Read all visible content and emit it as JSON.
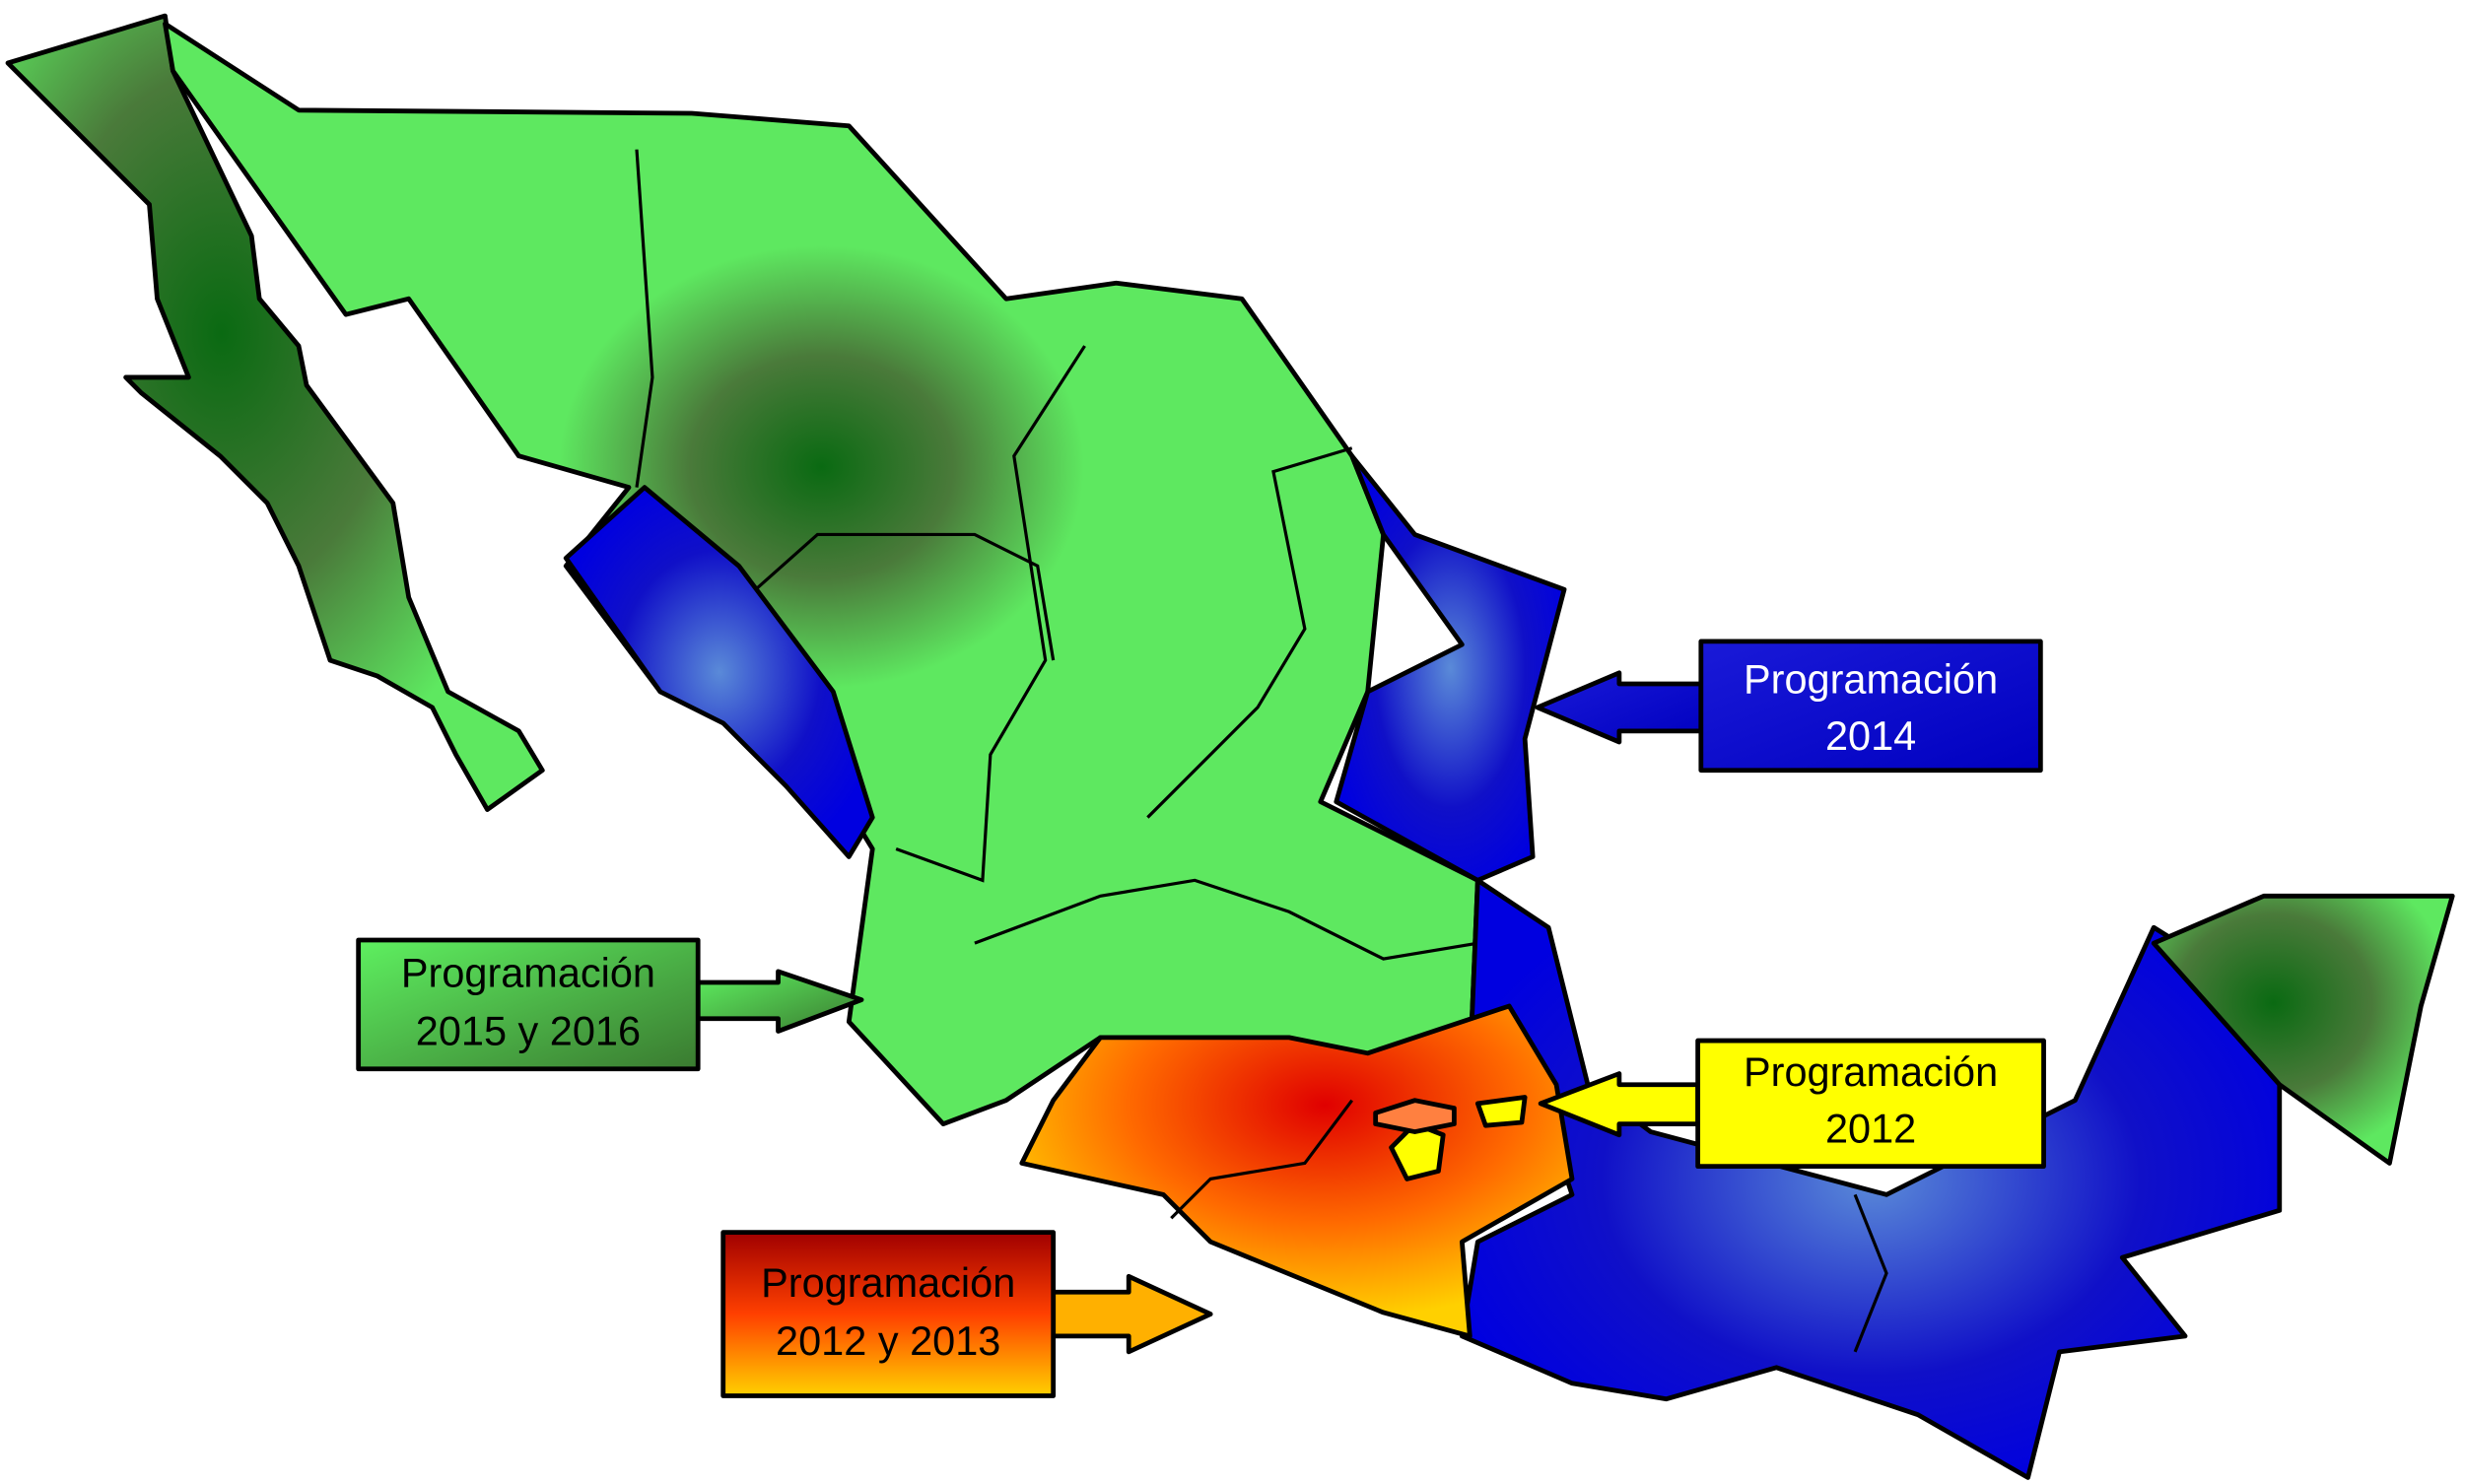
{
  "labels": [
    {
      "lines": [
        "Programación",
        "2014"
      ]
    },
    {
      "lines": [
        "Programación",
        "2015 y 2016"
      ]
    },
    {
      "lines": [
        "Programación",
        "2012"
      ]
    },
    {
      "lines": [
        "Programación",
        "2012 y 2013"
      ]
    }
  ]
}
